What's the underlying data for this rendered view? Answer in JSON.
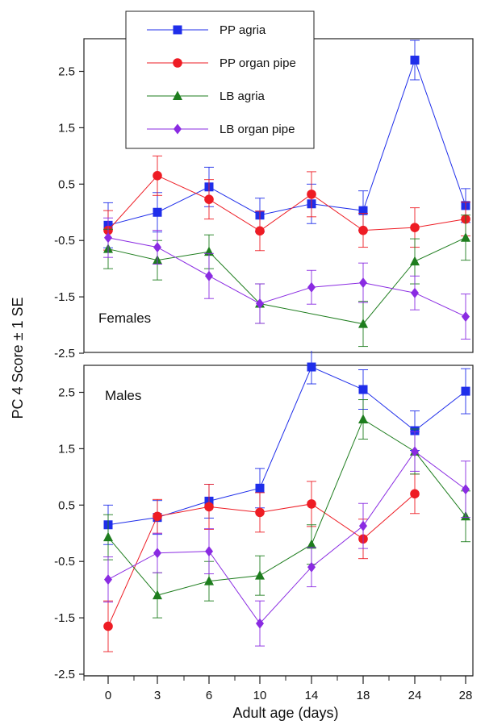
{
  "chart_data": {
    "type": "line",
    "ylabel": "PC 4 Score ± 1 SE",
    "xlabel": "Adult age (days)",
    "x": [
      0,
      3,
      6,
      10,
      14,
      18,
      24,
      28
    ],
    "x_ticks": [
      "0",
      "3",
      "6",
      "10",
      "14",
      "18",
      "24",
      "28"
    ],
    "y_ticks": [
      "-2.5",
      "-1.5",
      "-0.5",
      "0.5",
      "1.5",
      "2.5"
    ],
    "ylim": [
      -2.5,
      3.0
    ],
    "legend_position": "top-left",
    "legend": [
      {
        "name": "PP agria",
        "color": "#1f2eea",
        "marker": "square"
      },
      {
        "name": "PP organ pipe",
        "color": "#ee1c24",
        "marker": "circle"
      },
      {
        "name": "LB agria",
        "color": "#1e7d1e",
        "marker": "triangle"
      },
      {
        "name": "LB organ pipe",
        "color": "#8a2be2",
        "marker": "diamond"
      }
    ],
    "panels": [
      {
        "label": "Females",
        "series": [
          {
            "name": "PP agria",
            "values": [
              -0.23,
              0.0,
              0.45,
              -0.05,
              0.15,
              0.03,
              2.7,
              0.12
            ],
            "errors": [
              0.4,
              0.35,
              0.35,
              0.3,
              0.35,
              0.35,
              0.35,
              0.3
            ]
          },
          {
            "name": "PP organ pipe",
            "values": [
              -0.32,
              0.65,
              0.23,
              -0.33,
              0.32,
              -0.32,
              -0.27,
              -0.12
            ],
            "errors": [
              0.35,
              0.35,
              0.35,
              0.35,
              0.4,
              0.3,
              0.35,
              0.3
            ]
          },
          {
            "name": "LB agria",
            "values": [
              -0.65,
              -0.85,
              -0.7,
              -1.62,
              null,
              -1.98,
              -0.87,
              -0.45
            ],
            "errors": [
              0.35,
              0.35,
              0.3,
              0.35,
              null,
              0.4,
              0.4,
              0.4
            ]
          },
          {
            "name": "LB organ pipe",
            "values": [
              -0.45,
              -0.62,
              -1.13,
              -1.62,
              -1.33,
              -1.25,
              -1.43,
              -1.85
            ],
            "errors": [
              0.35,
              0.3,
              0.4,
              0.35,
              0.3,
              0.35,
              0.3,
              0.4
            ]
          }
        ]
      },
      {
        "label": "Males",
        "series": [
          {
            "name": "PP agria",
            "values": [
              0.15,
              0.28,
              0.57,
              0.8,
              2.95,
              2.55,
              1.82,
              2.52
            ],
            "errors": [
              0.35,
              0.3,
              0.3,
              0.35,
              0.3,
              0.35,
              0.35,
              0.4
            ]
          },
          {
            "name": "PP organ pipe",
            "values": [
              -1.65,
              0.3,
              0.47,
              0.37,
              0.52,
              -0.1,
              0.7,
              null
            ],
            "errors": [
              0.45,
              0.3,
              0.4,
              0.35,
              0.4,
              0.35,
              0.35,
              null
            ]
          },
          {
            "name": "LB agria",
            "values": [
              -0.07,
              -1.1,
              -0.85,
              -0.75,
              -0.2,
              2.02,
              1.45,
              0.3
            ],
            "errors": [
              0.4,
              0.4,
              0.35,
              0.35,
              0.35,
              0.35,
              0.4,
              0.45
            ]
          },
          {
            "name": "LB organ pipe",
            "values": [
              -0.82,
              -0.35,
              -0.32,
              -1.6,
              -0.6,
              0.13,
              1.45,
              0.78
            ],
            "errors": [
              0.4,
              0.35,
              0.4,
              0.4,
              0.35,
              0.4,
              0.35,
              0.5
            ]
          }
        ]
      }
    ]
  }
}
